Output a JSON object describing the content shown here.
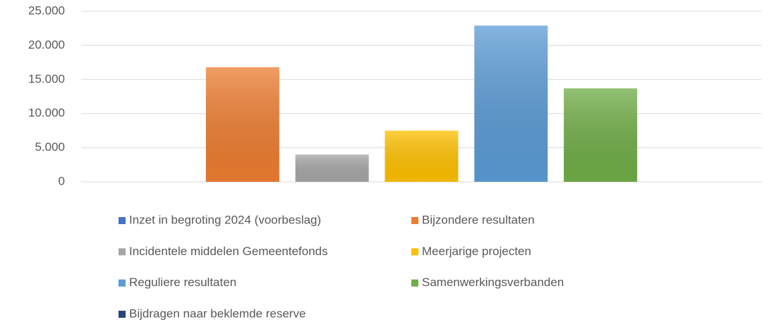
{
  "chart_data": {
    "type": "bar",
    "categories": [
      null
    ],
    "series": [
      {
        "name": "Inzet in begroting 2024 (voorbeslag)",
        "color": "#4472c4",
        "values": [
          0
        ]
      },
      {
        "name": "Bijzondere resultaten",
        "color": "#ed7d31",
        "values": [
          16800
        ]
      },
      {
        "name": "Incidentele middelen Gemeentefonds",
        "color": "#a5a5a5",
        "values": [
          4000
        ]
      },
      {
        "name": "Meerjarige projecten",
        "color": "#ffc000",
        "values": [
          7500
        ]
      },
      {
        "name": "Reguliere resultaten",
        "color": "#5b9bd5",
        "values": [
          22900
        ]
      },
      {
        "name": "Samenwerkingsverbanden",
        "color": "#70ad47",
        "values": [
          13700
        ]
      },
      {
        "name": "Bijdragen naar beklemde reserve",
        "color": "#264478",
        "values": [
          0
        ]
      }
    ],
    "ylim": [
      0,
      25000
    ],
    "yticks": [
      0,
      {
        "value": 5000,
        "label": "5.000"
      },
      {
        "value": 10000,
        "label": "10.000"
      },
      {
        "value": 15000,
        "label": "15.000"
      },
      {
        "value": 20000,
        "label": "20.000"
      },
      {
        "value": 25000,
        "label": "25.000"
      }
    ],
    "grid": true,
    "legend": "bottom"
  }
}
